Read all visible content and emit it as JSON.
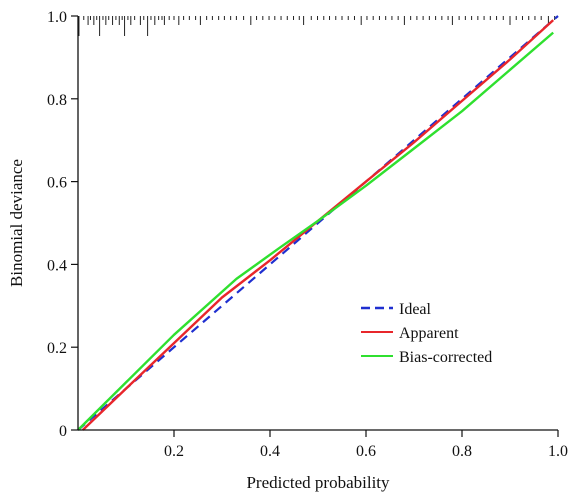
{
  "chart_data": {
    "type": "line",
    "title": "",
    "xlabel": "Predicted probability",
    "ylabel": "Binomial deviance",
    "xlim": [
      0,
      1.0
    ],
    "ylim": [
      0,
      1.0
    ],
    "x_ticks": [
      0.2,
      0.4,
      0.6,
      0.8,
      1.0
    ],
    "x_tick_labels": [
      "0.2",
      "0.4",
      "0.6",
      "0.8",
      "1.0"
    ],
    "y_ticks": [
      0,
      0.2,
      0.4,
      0.6,
      0.8,
      1.0
    ],
    "y_tick_labels": [
      "0",
      "0.2",
      "0.4",
      "0.6",
      "0.8",
      "1.0"
    ],
    "grid": false,
    "legend_position": "lower-right",
    "series": [
      {
        "name": "Ideal",
        "style": "dashed",
        "color": "#1f2fd0",
        "x": [
          0.0,
          0.2,
          0.4,
          0.6,
          0.8,
          1.0
        ],
        "y": [
          0.0,
          0.2,
          0.4,
          0.6,
          0.8,
          1.0
        ]
      },
      {
        "name": "Apparent",
        "style": "solid",
        "color": "#e8262b",
        "x": [
          0.01,
          0.1,
          0.2,
          0.3,
          0.4,
          0.5,
          0.6,
          0.7,
          0.8,
          0.9,
          0.99
        ],
        "y": [
          0.0,
          0.1,
          0.21,
          0.32,
          0.41,
          0.505,
          0.6,
          0.695,
          0.795,
          0.895,
          0.99
        ]
      },
      {
        "name": "Bias-corrected",
        "style": "solid",
        "color": "#2fe02f",
        "x": [
          0.0,
          0.1,
          0.2,
          0.33,
          0.42,
          0.5,
          0.6,
          0.7,
          0.8,
          0.9,
          0.99
        ],
        "y": [
          0.0,
          0.115,
          0.23,
          0.365,
          0.44,
          0.505,
          0.59,
          0.68,
          0.77,
          0.87,
          0.96
        ]
      }
    ],
    "rug": {
      "tall_x": [
        0.002,
        0.045,
        0.097,
        0.145
      ],
      "medium_x": [
        0.021,
        0.033,
        0.058,
        0.072,
        0.086,
        0.11,
        0.13,
        0.16,
        0.18,
        0.21,
        0.255,
        0.36,
        0.47,
        0.59,
        0.68,
        0.78,
        0.9,
        0.98
      ],
      "short_x": [
        0.012,
        0.026,
        0.039,
        0.052,
        0.064,
        0.079,
        0.092,
        0.104,
        0.118,
        0.137,
        0.152,
        0.168,
        0.175,
        0.19,
        0.2,
        0.22,
        0.232,
        0.245,
        0.268,
        0.28,
        0.293,
        0.305,
        0.318,
        0.33,
        0.345,
        0.372,
        0.385,
        0.398,
        0.41,
        0.423,
        0.436,
        0.449,
        0.461,
        0.486,
        0.499,
        0.512,
        0.524,
        0.537,
        0.55,
        0.563,
        0.576,
        0.602,
        0.615,
        0.628,
        0.641,
        0.654,
        0.667,
        0.693,
        0.706,
        0.719,
        0.732,
        0.745,
        0.758,
        0.771,
        0.794,
        0.807,
        0.82,
        0.833,
        0.846,
        0.859,
        0.872,
        0.886,
        0.913,
        0.926,
        0.939,
        0.952,
        0.965,
        0.993
      ]
    }
  }
}
